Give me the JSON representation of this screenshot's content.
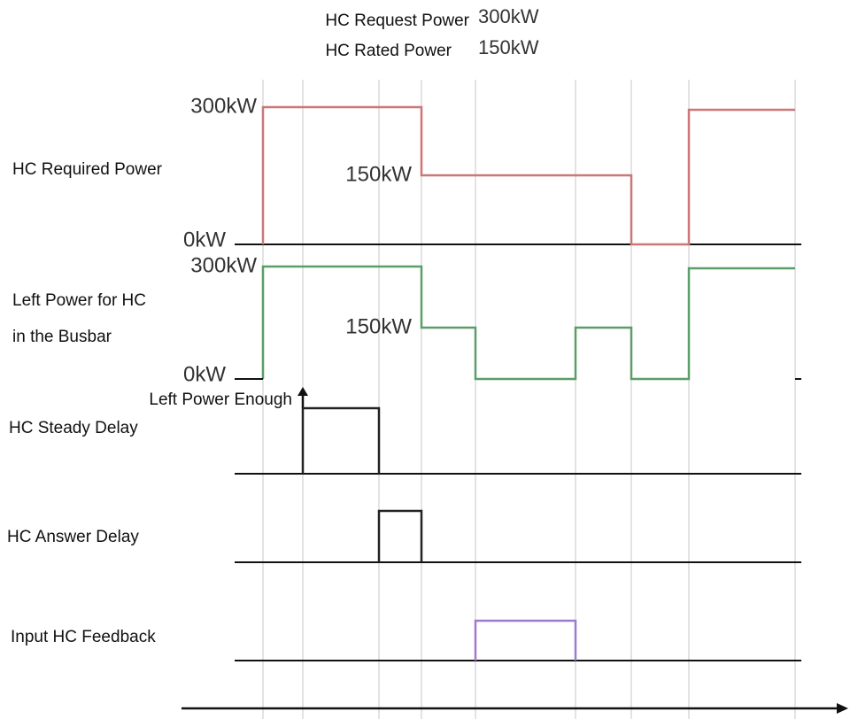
{
  "header": {
    "request_label": "HC Request Power",
    "request_value": "300kW",
    "rated_label": "HC Rated Power",
    "rated_value": "150kW"
  },
  "signals": [
    {
      "label": "HC Required Power",
      "levels": [
        "300kW",
        "150kW",
        "0kW"
      ]
    },
    {
      "label_lines": [
        "Left Power for HC",
        "in the Busbar"
      ],
      "levels": [
        "300kW",
        "150kW",
        "0kW"
      ]
    },
    {
      "label": "HC Steady Delay"
    },
    {
      "label": "HC Answer Delay"
    },
    {
      "label": "Input HC Feedback"
    }
  ],
  "annotation": "Left Power Enough"
}
